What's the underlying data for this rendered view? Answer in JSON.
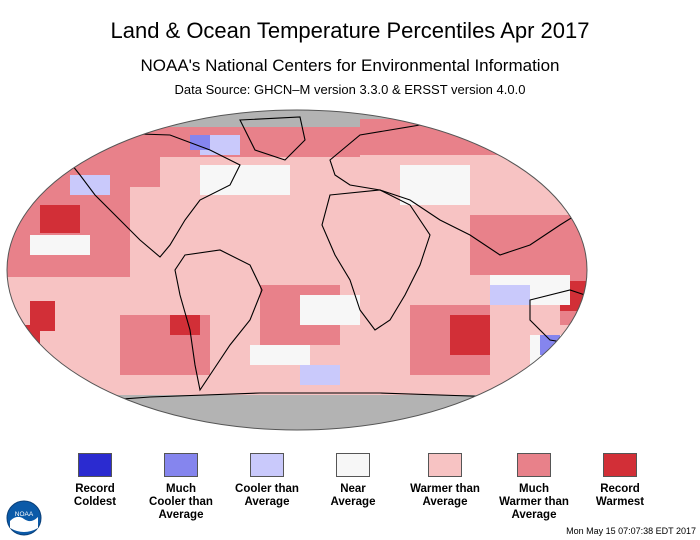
{
  "header": {
    "title": "Land & Ocean Temperature Percentiles Apr 2017",
    "subtitle": "NOAA's National Centers for Environmental Information",
    "source": "Data Source: GHCN–M version 3.3.0 & ERSST version 4.0.0"
  },
  "map": {
    "colors": {
      "record_coldest": "#2b2bd0",
      "much_cooler": "#8585ee",
      "cooler": "#c9c9fb",
      "near": "#f7f7f7",
      "warmer": "#f7c3c3",
      "much_warmer": "#e8818a",
      "record_warmest": "#d22f37",
      "missing": "#b3b3b3",
      "land_outline": "#000000"
    }
  },
  "legend": {
    "items": [
      {
        "label": "Record\nColdest",
        "color": "#2b2bd0"
      },
      {
        "label": "Much\nCooler than\nAverage",
        "color": "#8585ee"
      },
      {
        "label": "Cooler than\nAverage",
        "color": "#c9c9fb"
      },
      {
        "label": "Near\nAverage",
        "color": "#f7f7f7"
      },
      {
        "label": "Warmer than\nAverage",
        "color": "#f7c3c3"
      },
      {
        "label": "Much\nWarmer than\nAverage",
        "color": "#e8818a"
      },
      {
        "label": "Record\nWarmest",
        "color": "#d22f37"
      }
    ]
  },
  "footer": {
    "timestamp": "Mon May 15 07:07:38 EDT 2017",
    "logo_text": "NOAA"
  }
}
